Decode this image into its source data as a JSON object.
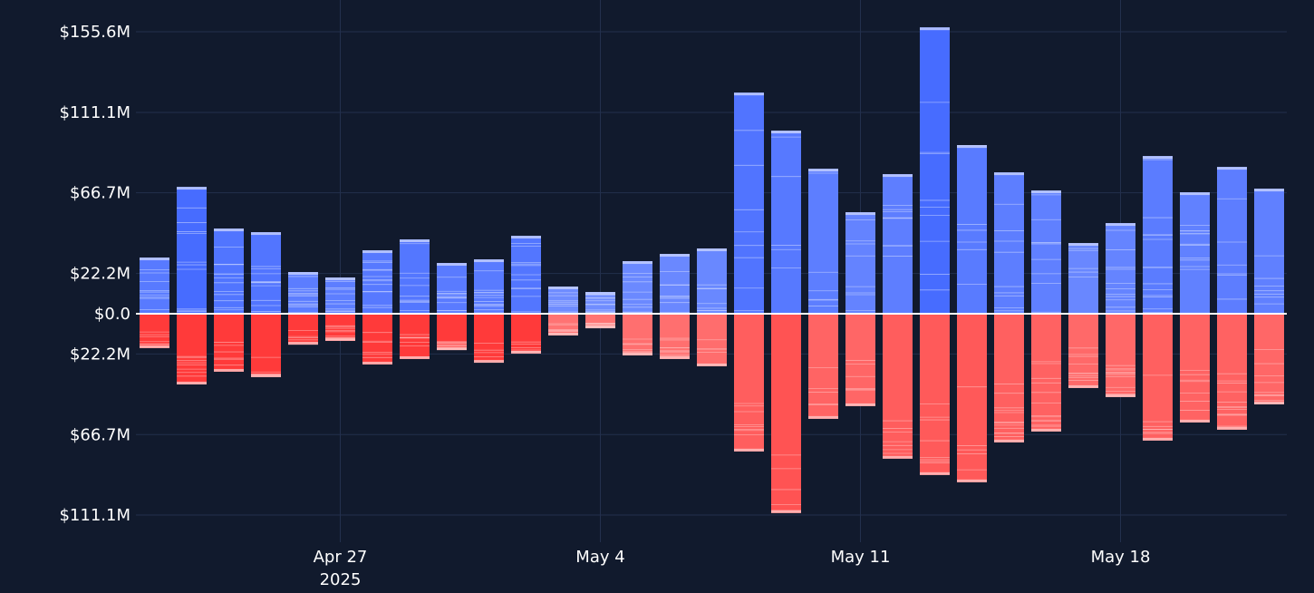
{
  "chart_data": {
    "type": "bar",
    "stacked": true,
    "diverging": true,
    "x_start": "2025-04-22",
    "x_end": "2025-05-22",
    "x_ticks": [
      {
        "date": "2025-04-27",
        "label": "Apr 27",
        "sublabel": "2025"
      },
      {
        "date": "2025-05-04",
        "label": "May 4",
        "sublabel": ""
      },
      {
        "date": "2025-05-11",
        "label": "May 11",
        "sublabel": ""
      },
      {
        "date": "2025-05-18",
        "label": "May 18",
        "sublabel": ""
      }
    ],
    "y_ticks": [
      {
        "value": 155.6,
        "label": "$155.6M"
      },
      {
        "value": 111.1,
        "label": "$111.1M"
      },
      {
        "value": 66.7,
        "label": "$66.7M"
      },
      {
        "value": 22.2,
        "label": "$22.2M"
      },
      {
        "value": 0,
        "label": "$0.0"
      },
      {
        "value": -22.2,
        "label": "$22.2M"
      },
      {
        "value": -66.7,
        "label": "$66.7M"
      },
      {
        "value": -111.1,
        "label": "$111.1M"
      }
    ],
    "ylim": [
      -111.1,
      158
    ],
    "grid": true,
    "x": [
      "2025-04-22",
      "2025-04-23",
      "2025-04-24",
      "2025-04-25",
      "2025-04-26",
      "2025-04-27",
      "2025-04-28",
      "2025-04-29",
      "2025-04-30",
      "2025-05-01",
      "2025-05-02",
      "2025-05-03",
      "2025-05-04",
      "2025-05-05",
      "2025-05-06",
      "2025-05-07",
      "2025-05-08",
      "2025-05-09",
      "2025-05-10",
      "2025-05-11",
      "2025-05-12",
      "2025-05-13",
      "2025-05-14",
      "2025-05-15",
      "2025-05-16",
      "2025-05-17",
      "2025-05-18",
      "2025-05-19",
      "2025-05-20",
      "2025-05-21",
      "2025-05-22"
    ],
    "positive_totals": [
      31,
      70,
      47,
      45,
      23,
      20,
      35,
      41,
      28,
      30,
      43,
      15,
      12,
      29,
      33,
      36,
      122,
      101,
      80,
      56,
      77,
      158,
      93,
      78,
      68,
      39,
      50,
      87,
      67,
      81,
      69
    ],
    "negative_totals": [
      -19,
      -39,
      -32,
      -35,
      -17,
      -15,
      -28,
      -25,
      -20,
      -27,
      -22,
      -12,
      -8,
      -23,
      -25,
      -29,
      -76,
      -110,
      -58,
      -51,
      -80,
      -89,
      -93,
      -71,
      -65,
      -41,
      -46,
      -70,
      -60,
      -64,
      -50
    ],
    "colors": {
      "background": "#111a2d",
      "grid": "#23304d",
      "zero_line": "#ffffff",
      "positive_dark": "#1f4dff",
      "positive_light": "#90a6ff",
      "negative_dark": "#ff3535",
      "negative_light": "#ff9a9a",
      "segment_line": "#dfe6ff"
    }
  }
}
